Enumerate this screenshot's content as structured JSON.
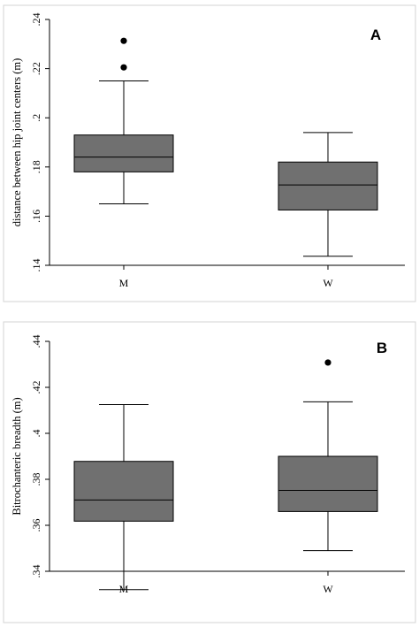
{
  "colors": {
    "box_fill": "#707070",
    "frame": "#d3d3d3",
    "ink": "#000000"
  },
  "chart_data": [
    {
      "type": "box",
      "panel": "A",
      "title": "",
      "ylabel": "distance between hip joint centers (m)",
      "xlabel": "",
      "ylim": [
        0.14,
        0.24
      ],
      "yticks": [
        0.14,
        0.16,
        0.18,
        0.2,
        0.22,
        0.24
      ],
      "ytick_labels": [
        ".14",
        ".16",
        ".18",
        ".2",
        ".22",
        ".24"
      ],
      "categories": [
        "M",
        "W"
      ],
      "boxes": [
        {
          "category": "M",
          "whisker_low": 0.165,
          "q1": 0.178,
          "median": 0.184,
          "q3": 0.193,
          "whisker_high": 0.215,
          "outliers": [
            0.2205,
            0.2313
          ]
        },
        {
          "category": "W",
          "whisker_low": 0.1437,
          "q1": 0.1625,
          "median": 0.1727,
          "q3": 0.182,
          "whisker_high": 0.194,
          "outliers": []
        }
      ]
    },
    {
      "type": "box",
      "panel": "B",
      "title": "",
      "ylabel": "Bitrochanteric breadth (m)",
      "xlabel": "",
      "ylim": [
        0.34,
        0.44
      ],
      "yticks": [
        0.34,
        0.36,
        0.38,
        0.4,
        0.42,
        0.44
      ],
      "ytick_labels": [
        ".34",
        ".36",
        ".38",
        ".4",
        ".42",
        ".44"
      ],
      "categories": [
        "M",
        "W"
      ],
      "boxes": [
        {
          "category": "M",
          "whisker_low": 0.332,
          "q1": 0.3618,
          "median": 0.371,
          "q3": 0.3878,
          "whisker_high": 0.4125,
          "outliers": []
        },
        {
          "category": "W",
          "whisker_low": 0.349,
          "q1": 0.366,
          "median": 0.3752,
          "q3": 0.39,
          "whisker_high": 0.4137,
          "outliers": [
            0.4308
          ]
        }
      ]
    }
  ]
}
